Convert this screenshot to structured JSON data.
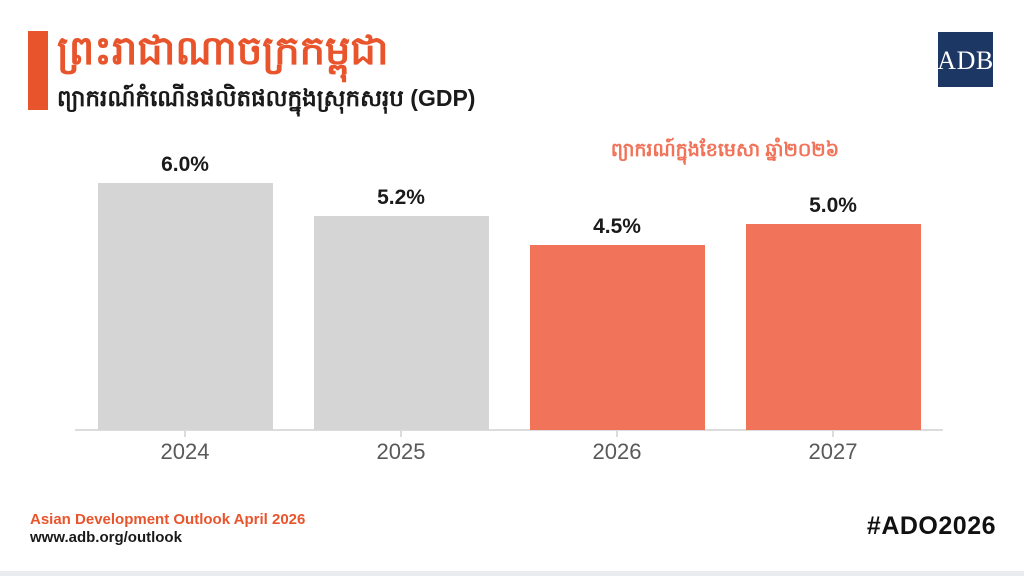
{
  "header": {
    "title": "ព្រះរាជាណាចក្រកម្ពុជា",
    "subtitle": "ព្យាករណ៍កំណើនផលិតផលក្នុងស្រុកសរុប (GDP)",
    "logo_text": "ADB"
  },
  "chart_data": {
    "type": "bar",
    "categories": [
      "2024",
      "2025",
      "2026",
      "2027"
    ],
    "values": [
      6.0,
      5.2,
      4.5,
      5.0
    ],
    "value_labels": [
      "6.0%",
      "5.2%",
      "4.5%",
      "5.0%"
    ],
    "bar_colors": [
      "#D5D5D5",
      "#D5D5D5",
      "#F0735A",
      "#F0735A"
    ],
    "annotation": "ព្យាករណ៍ក្នុងខែមេសា ឆ្នាំ២០២៦",
    "title": "",
    "xlabel": "",
    "ylabel": "",
    "ylim": [
      0,
      6.5
    ],
    "grid": false,
    "legend": null
  },
  "footer": {
    "source": "Asian Development Outlook April 2026",
    "url": "www.adb.org/outlook",
    "hashtag": "#ADO2026"
  },
  "colors": {
    "accent_orange": "#E8552D",
    "bar_orange": "#F0735A",
    "bar_gray": "#D5D5D5",
    "logo_navy": "#1D3765",
    "axis_gray": "#DCDCDC",
    "tick_label_gray": "#595959"
  }
}
